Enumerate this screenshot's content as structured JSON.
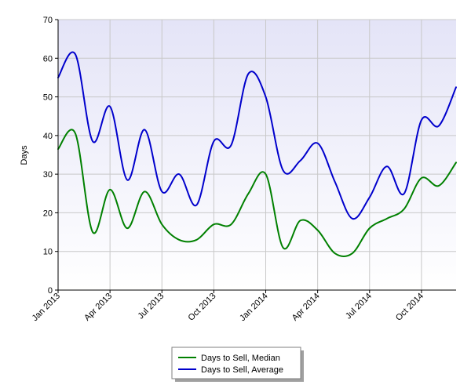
{
  "chart_data": {
    "type": "line",
    "title": "",
    "xlabel": "",
    "ylabel": "Days",
    "ylim": [
      0,
      70
    ],
    "yticks": [
      0,
      10,
      20,
      30,
      40,
      50,
      60,
      70
    ],
    "xlim": [
      "2013-01",
      "2014-12"
    ],
    "xticks": [
      {
        "x": "2013-01",
        "label": "Jan 2013"
      },
      {
        "x": "2013-04",
        "label": "Apr 2013"
      },
      {
        "x": "2013-07",
        "label": "Jul 2013"
      },
      {
        "x": "2013-10",
        "label": "Oct 2013"
      },
      {
        "x": "2014-01",
        "label": "Jan 2014"
      },
      {
        "x": "2014-04",
        "label": "Apr 2014"
      },
      {
        "x": "2014-07",
        "label": "Jul 2014"
      },
      {
        "x": "2014-10",
        "label": "Oct 2014"
      }
    ],
    "x": [
      "2013-01",
      "2013-02",
      "2013-03",
      "2013-04",
      "2013-05",
      "2013-06",
      "2013-07",
      "2013-08",
      "2013-09",
      "2013-10",
      "2013-11",
      "2013-12",
      "2014-01",
      "2014-02",
      "2014-03",
      "2014-04",
      "2014-05",
      "2014-06",
      "2014-07",
      "2014-08",
      "2014-09",
      "2014-10",
      "2014-11",
      "2014-12"
    ],
    "grid": true,
    "legend_position": "bottom-center",
    "series": [
      {
        "name": "Days to Sell, Median",
        "color": "#008000",
        "values": [
          36.5,
          40.5,
          15,
          26,
          16,
          25.5,
          17,
          13,
          13,
          17,
          17,
          25,
          30,
          11,
          18,
          15.5,
          9.5,
          9.5,
          16,
          18.5,
          21,
          29,
          27,
          33
        ]
      },
      {
        "name": "Days to Sell, Average",
        "color": "#0000cc",
        "values": [
          55,
          61,
          38.5,
          47.5,
          28.5,
          41.5,
          25.5,
          30,
          22,
          38.5,
          37.5,
          56,
          50,
          31,
          33.5,
          38,
          28,
          18.5,
          24,
          32,
          25,
          44,
          42.5,
          52.5
        ]
      }
    ],
    "colors": {
      "plot_bg_top": "#e4e4f7",
      "plot_bg_bottom": "#ffffff",
      "grid": "#c8c8c8"
    }
  }
}
